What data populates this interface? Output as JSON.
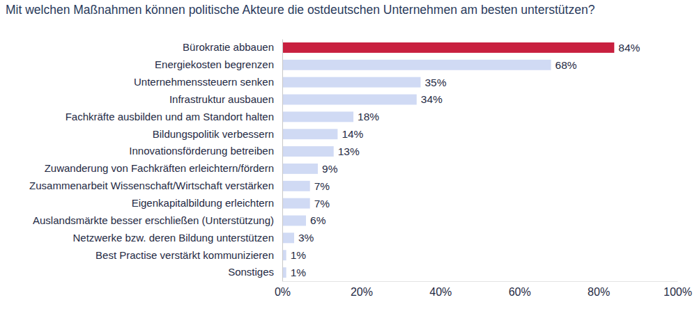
{
  "chart_data": {
    "type": "bar",
    "orientation": "horizontal",
    "title": "Mit welchen Maßnahmen können politische Akteure die ostdeutschen Unternehmen am besten unterstützen?",
    "categories": [
      "Bürokratie abbauen",
      "Energiekosten begrenzen",
      "Unternehmenssteuern senken",
      "Infrastruktur ausbauen",
      "Fachkräfte ausbilden und am Standort halten",
      "Bildungspolitik verbessern",
      "Innovationsförderung betreiben",
      "Zuwanderung von Fachkräften erleichtern/fördern",
      "Zusammenarbeit Wissenschaft/Wirtschaft verstärken",
      "Eigenkapitalbildung erleichtern",
      "Auslandsmärkte besser erschließen (Unterstützung)",
      "Netzwerke bzw. deren Bildung unterstützen",
      "Best Practise verstärkt kommunizieren",
      "Sonstiges"
    ],
    "values": [
      84,
      68,
      35,
      34,
      18,
      14,
      13,
      9,
      7,
      7,
      6,
      3,
      1,
      1
    ],
    "value_labels": [
      "84%",
      "68%",
      "35%",
      "34%",
      "18%",
      "14%",
      "13%",
      "9%",
      "7%",
      "7%",
      "6%",
      "3%",
      "1%",
      "1%"
    ],
    "data_labels": true,
    "colors": [
      "#c8203f",
      "#d0daf4",
      "#d0daf4",
      "#d0daf4",
      "#d0daf4",
      "#d0daf4",
      "#d0daf4",
      "#d0daf4",
      "#d0daf4",
      "#d0daf4",
      "#d0daf4",
      "#d0daf4",
      "#d0daf4",
      "#d0daf4"
    ],
    "xlim": [
      0,
      100
    ],
    "xticks": [
      {
        "value": 0,
        "label": "0%"
      },
      {
        "value": 20,
        "label": "20%"
      },
      {
        "value": 40,
        "label": "40%"
      },
      {
        "value": 60,
        "label": "60%"
      },
      {
        "value": 80,
        "label": "80%"
      },
      {
        "value": 100,
        "label": "100%"
      }
    ],
    "grid": false
  }
}
